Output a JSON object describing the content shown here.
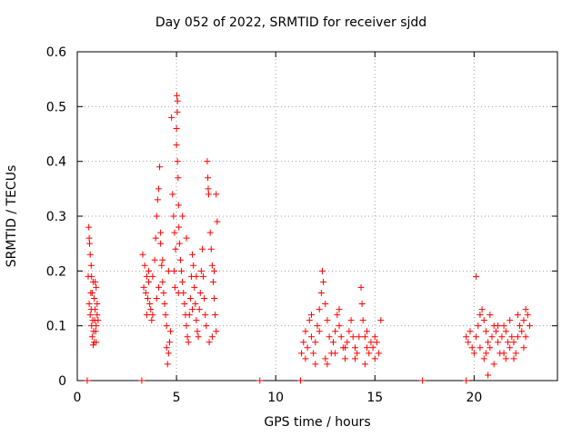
{
  "chart_data": {
    "type": "scatter",
    "title": "Day 052 of 2022, SRMTID for receiver sjdd",
    "xlabel": "GPS time / hours",
    "ylabel": "SRMTID / TECUs",
    "xlim": [
      0,
      24.2
    ],
    "ylim": [
      0,
      0.6
    ],
    "xticks": [
      0,
      5,
      10,
      15,
      20
    ],
    "yticks": [
      0,
      0.1,
      0.2,
      0.3,
      0.4,
      0.5,
      0.6
    ],
    "grid": true,
    "marker": "+",
    "color": "#ff0000",
    "series": [
      {
        "name": "SRMTID",
        "points": [
          [
            0.58,
            0.28
          ],
          [
            0.6,
            0.26
          ],
          [
            0.62,
            0.25
          ],
          [
            0.65,
            0.23
          ],
          [
            0.7,
            0.21
          ],
          [
            0.55,
            0.19
          ],
          [
            0.72,
            0.19
          ],
          [
            0.8,
            0.18
          ],
          [
            0.9,
            0.18
          ],
          [
            0.95,
            0.17
          ],
          [
            0.68,
            0.16
          ],
          [
            0.75,
            0.16
          ],
          [
            0.85,
            0.15
          ],
          [
            0.6,
            0.14
          ],
          [
            0.7,
            0.13
          ],
          [
            0.9,
            0.13
          ],
          [
            1.0,
            0.12
          ],
          [
            0.65,
            0.12
          ],
          [
            0.78,
            0.11
          ],
          [
            0.88,
            0.11
          ],
          [
            0.95,
            0.1
          ],
          [
            0.72,
            0.1
          ],
          [
            0.82,
            0.09
          ],
          [
            0.92,
            0.09
          ],
          [
            0.75,
            0.08
          ],
          [
            0.85,
            0.07
          ],
          [
            0.95,
            0.07
          ],
          [
            0.8,
            0.065
          ],
          [
            1.05,
            0.11
          ],
          [
            1.0,
            0.14
          ],
          [
            3.3,
            0.23
          ],
          [
            3.4,
            0.21
          ],
          [
            3.5,
            0.19
          ],
          [
            3.6,
            0.18
          ],
          [
            3.35,
            0.17
          ],
          [
            3.45,
            0.16
          ],
          [
            3.55,
            0.15
          ],
          [
            3.65,
            0.14
          ],
          [
            3.7,
            0.13
          ],
          [
            3.8,
            0.12
          ],
          [
            3.75,
            0.11
          ],
          [
            3.5,
            0.12
          ],
          [
            3.6,
            0.2
          ],
          [
            3.9,
            0.22
          ],
          [
            3.95,
            0.26
          ],
          [
            4.0,
            0.3
          ],
          [
            4.05,
            0.33
          ],
          [
            4.1,
            0.35
          ],
          [
            4.15,
            0.39
          ],
          [
            4.2,
            0.25
          ],
          [
            4.25,
            0.21
          ],
          [
            4.3,
            0.18
          ],
          [
            4.35,
            0.16
          ],
          [
            4.4,
            0.14
          ],
          [
            4.45,
            0.12
          ],
          [
            4.5,
            0.1
          ],
          [
            4.5,
            0.06
          ],
          [
            4.55,
            0.03
          ],
          [
            4.6,
            0.05
          ],
          [
            4.65,
            0.07
          ],
          [
            4.7,
            0.09
          ],
          [
            4.75,
            0.48
          ],
          [
            4.8,
            0.34
          ],
          [
            4.85,
            0.3
          ],
          [
            4.9,
            0.27
          ],
          [
            4.95,
            0.24
          ],
          [
            4.88,
            0.2
          ],
          [
            4.92,
            0.17
          ],
          [
            5.0,
            0.46
          ],
          [
            5.0,
            0.43
          ],
          [
            5.02,
            0.52
          ],
          [
            5.05,
            0.51
          ],
          [
            5.04,
            0.49
          ],
          [
            5.05,
            0.4
          ],
          [
            5.08,
            0.37
          ],
          [
            5.1,
            0.32
          ],
          [
            5.12,
            0.28
          ],
          [
            5.15,
            0.25
          ],
          [
            5.2,
            0.22
          ],
          [
            5.25,
            0.2
          ],
          [
            5.3,
            0.18
          ],
          [
            5.35,
            0.16
          ],
          [
            5.4,
            0.14
          ],
          [
            5.45,
            0.12
          ],
          [
            5.5,
            0.1
          ],
          [
            5.55,
            0.08
          ],
          [
            5.6,
            0.07
          ],
          [
            5.65,
            0.12
          ],
          [
            5.7,
            0.15
          ],
          [
            5.75,
            0.19
          ],
          [
            5.8,
            0.23
          ],
          [
            5.85,
            0.21
          ],
          [
            5.9,
            0.17
          ],
          [
            5.95,
            0.14
          ],
          [
            6.0,
            0.11
          ],
          [
            6.05,
            0.09
          ],
          [
            6.1,
            0.08
          ],
          [
            6.15,
            0.13
          ],
          [
            6.2,
            0.16
          ],
          [
            6.25,
            0.2
          ],
          [
            6.3,
            0.24
          ],
          [
            6.35,
            0.19
          ],
          [
            6.4,
            0.15
          ],
          [
            6.45,
            0.12
          ],
          [
            6.5,
            0.1
          ],
          [
            6.55,
            0.4
          ],
          [
            6.58,
            0.37
          ],
          [
            6.6,
            0.35
          ],
          [
            6.62,
            0.34
          ],
          [
            6.7,
            0.27
          ],
          [
            6.75,
            0.24
          ],
          [
            6.8,
            0.21
          ],
          [
            6.85,
            0.18
          ],
          [
            6.9,
            0.15
          ],
          [
            6.95,
            0.12
          ],
          [
            7.0,
            0.09
          ],
          [
            7.05,
            0.29
          ],
          [
            7.0,
            0.34
          ],
          [
            6.65,
            0.07
          ],
          [
            6.8,
            0.08
          ],
          [
            4.2,
            0.27
          ],
          [
            4.3,
            0.22
          ],
          [
            4.6,
            0.2
          ],
          [
            3.8,
            0.19
          ],
          [
            5.3,
            0.3
          ],
          [
            5.5,
            0.26
          ],
          [
            4.0,
            0.15
          ],
          [
            4.1,
            0.17
          ],
          [
            6.0,
            0.19
          ],
          [
            5.8,
            0.13
          ],
          [
            6.9,
            0.2
          ],
          [
            5.1,
            0.16
          ],
          [
            11.3,
            0.05
          ],
          [
            11.4,
            0.07
          ],
          [
            11.5,
            0.09
          ],
          [
            11.6,
            0.06
          ],
          [
            11.7,
            0.11
          ],
          [
            11.8,
            0.08
          ],
          [
            11.9,
            0.05
          ],
          [
            12.0,
            0.07
          ],
          [
            12.1,
            0.1
          ],
          [
            12.2,
            0.13
          ],
          [
            12.3,
            0.16
          ],
          [
            12.35,
            0.2
          ],
          [
            12.4,
            0.18
          ],
          [
            12.5,
            0.14
          ],
          [
            12.6,
            0.11
          ],
          [
            12.7,
            0.08
          ],
          [
            12.8,
            0.05
          ],
          [
            12.9,
            0.07
          ],
          [
            13.0,
            0.09
          ],
          [
            13.1,
            0.12
          ],
          [
            13.2,
            0.1
          ],
          [
            13.3,
            0.08
          ],
          [
            13.4,
            0.06
          ],
          [
            13.5,
            0.04
          ],
          [
            13.6,
            0.07
          ],
          [
            13.7,
            0.09
          ],
          [
            13.8,
            0.11
          ],
          [
            13.9,
            0.08
          ],
          [
            14.0,
            0.06
          ],
          [
            14.1,
            0.05
          ],
          [
            14.2,
            0.08
          ],
          [
            14.3,
            0.17
          ],
          [
            14.35,
            0.14
          ],
          [
            14.4,
            0.11
          ],
          [
            14.5,
            0.08
          ],
          [
            14.6,
            0.06
          ],
          [
            14.7,
            0.05
          ],
          [
            14.8,
            0.07
          ],
          [
            14.9,
            0.06
          ],
          [
            15.0,
            0.08
          ],
          [
            15.1,
            0.07
          ],
          [
            15.2,
            0.05
          ],
          [
            15.3,
            0.11
          ],
          [
            11.5,
            0.04
          ],
          [
            12.0,
            0.03
          ],
          [
            12.5,
            0.04
          ],
          [
            13.0,
            0.05
          ],
          [
            13.5,
            0.06
          ],
          [
            14.0,
            0.04
          ],
          [
            14.5,
            0.03
          ],
          [
            15.0,
            0.04
          ],
          [
            11.8,
            0.12
          ],
          [
            12.2,
            0.09
          ],
          [
            13.2,
            0.13
          ],
          [
            14.6,
            0.09
          ],
          [
            12.6,
            0.03
          ],
          [
            20.1,
            0.19
          ],
          [
            19.6,
            0.08
          ],
          [
            19.7,
            0.07
          ],
          [
            19.8,
            0.09
          ],
          [
            19.9,
            0.06
          ],
          [
            20.0,
            0.05
          ],
          [
            20.1,
            0.08
          ],
          [
            20.2,
            0.1
          ],
          [
            20.3,
            0.12
          ],
          [
            20.4,
            0.13
          ],
          [
            20.5,
            0.11
          ],
          [
            20.6,
            0.09
          ],
          [
            20.7,
            0.07
          ],
          [
            20.8,
            0.06
          ],
          [
            20.9,
            0.08
          ],
          [
            21.0,
            0.1
          ],
          [
            21.1,
            0.09
          ],
          [
            21.2,
            0.07
          ],
          [
            21.3,
            0.05
          ],
          [
            21.4,
            0.08
          ],
          [
            21.5,
            0.1
          ],
          [
            21.6,
            0.09
          ],
          [
            21.7,
            0.07
          ],
          [
            21.8,
            0.06
          ],
          [
            21.9,
            0.08
          ],
          [
            22.0,
            0.07
          ],
          [
            22.1,
            0.05
          ],
          [
            22.2,
            0.08
          ],
          [
            22.3,
            0.1
          ],
          [
            22.4,
            0.09
          ],
          [
            22.5,
            0.11
          ],
          [
            22.6,
            0.13
          ],
          [
            22.7,
            0.12
          ],
          [
            22.8,
            0.1
          ],
          [
            20.7,
            0.01
          ],
          [
            20.5,
            0.04
          ],
          [
            21.0,
            0.03
          ],
          [
            21.5,
            0.05
          ],
          [
            22.0,
            0.04
          ],
          [
            22.5,
            0.06
          ],
          [
            20.3,
            0.06
          ],
          [
            20.8,
            0.12
          ],
          [
            21.2,
            0.1
          ],
          [
            21.8,
            0.11
          ],
          [
            22.2,
            0.12
          ],
          [
            22.6,
            0.08
          ],
          [
            20.6,
            0.05
          ],
          [
            21.6,
            0.04
          ],
          [
            0.5,
            0.0
          ],
          [
            3.25,
            0.0
          ],
          [
            9.2,
            0.0
          ],
          [
            11.25,
            0.0
          ],
          [
            17.4,
            0.0
          ],
          [
            19.6,
            0.0
          ]
        ]
      }
    ]
  }
}
